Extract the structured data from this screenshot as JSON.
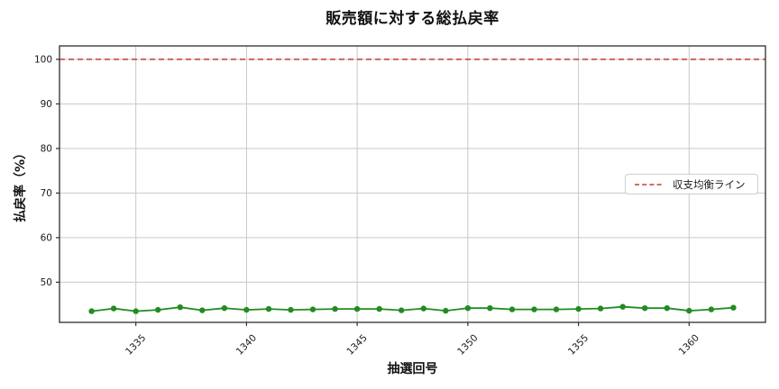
{
  "chart_data": {
    "type": "line",
    "title": "販売額に対する総払戻率",
    "xlabel": "抽選回号",
    "ylabel": "払戻率（%）",
    "x": [
      1333,
      1334,
      1335,
      1336,
      1337,
      1338,
      1339,
      1340,
      1341,
      1342,
      1343,
      1344,
      1345,
      1346,
      1347,
      1348,
      1349,
      1350,
      1351,
      1352,
      1353,
      1354,
      1355,
      1356,
      1357,
      1358,
      1359,
      1360,
      1361,
      1362
    ],
    "series": [
      {
        "color": "#228B22",
        "marker": "circle",
        "values": [
          43.5,
          44.1,
          43.5,
          43.8,
          44.4,
          43.7,
          44.2,
          43.8,
          44.0,
          43.8,
          43.9,
          44.0,
          44.0,
          44.0,
          43.7,
          44.1,
          43.6,
          44.2,
          44.2,
          43.9,
          43.9,
          43.9,
          44.0,
          44.1,
          44.5,
          44.2,
          44.2,
          43.6,
          43.9,
          44.3
        ]
      }
    ],
    "reference_line": {
      "label": "収支均衡ライン",
      "y": 100,
      "color": "#c23b36",
      "style": "dashed"
    },
    "legend": {
      "position": "center-right",
      "entries": [
        {
          "label": "収支均衡ライン",
          "color": "#c23b36",
          "style": "dashed"
        }
      ]
    },
    "xlim": [
      1331.55,
      1363.45
    ],
    "ylim": [
      41,
      103
    ],
    "xticks": [
      1335,
      1340,
      1345,
      1350,
      1355,
      1360
    ],
    "yticks": [
      50,
      60,
      70,
      80,
      90,
      100
    ],
    "grid": true,
    "colors": {
      "grid": "#c9c9c9",
      "spine": "#2e2e2e",
      "tick_label": "#1a1a1a",
      "background": "#ffffff"
    }
  }
}
